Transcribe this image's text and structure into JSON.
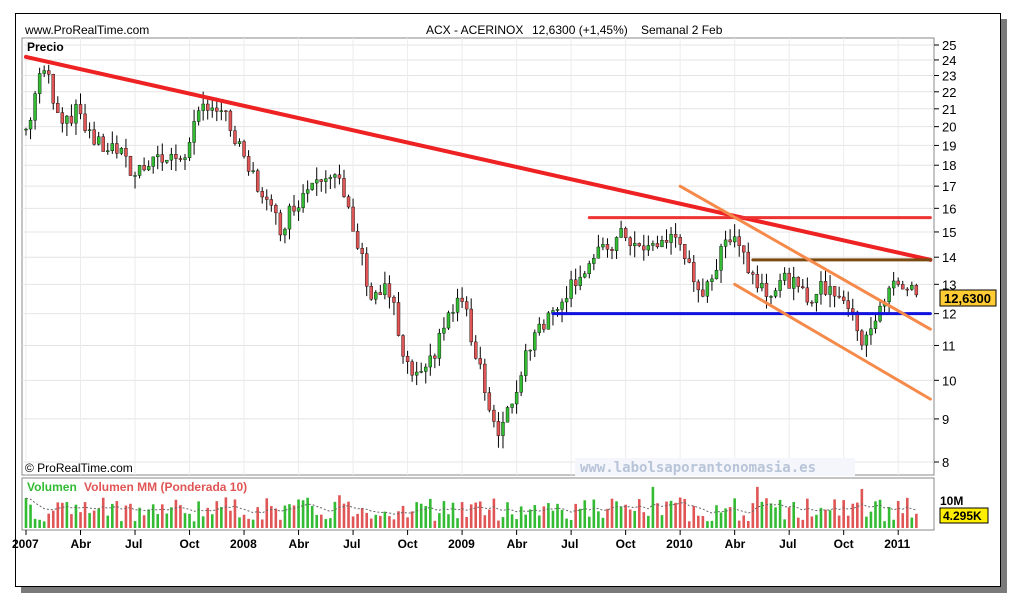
{
  "header": {
    "source": "www.ProRealTime.com",
    "instrument": "ACX - ACERINOX",
    "quote": "12,6300 (+1,45%)",
    "period": "Semanal 2 Feb"
  },
  "price_panel": {
    "label": "Precio",
    "copyright": "© ProRealTime.com",
    "watermark": "www.labolsaporantonomasia.es",
    "last_price_tag": "12,6300"
  },
  "volume_panel": {
    "label": "Volumen MM (Ponderada 10)",
    "scale_label": "10M",
    "last_volume_tag": "4.295K"
  },
  "colors": {
    "up": "#33bb33",
    "down": "#e05555",
    "main_trendline": "#ee2222",
    "resistance": "#ee3333",
    "support": "#1111dd",
    "channel": "#f58a4a",
    "brown_level": "#7a4a10",
    "price_tag_bg": "#ffcc33",
    "volume_tag_bg": "#ffee00"
  },
  "chart_data": [
    {
      "type": "candlestick",
      "title": "ACX - ACERINOX",
      "frequency": "weekly",
      "ylim": [
        8,
        25
      ],
      "y_ticks": [
        8,
        9,
        10,
        11,
        12,
        13,
        14,
        15,
        16,
        17,
        18,
        19,
        20,
        21,
        22,
        23,
        24,
        25
      ],
      "x_ticks": [
        "2007",
        "Abr",
        "Jul",
        "Oct",
        "2008",
        "Abr",
        "Jul",
        "Oct",
        "2009",
        "Abr",
        "Jul",
        "Oct",
        "2010",
        "Abr",
        "Jul",
        "Oct",
        "2011"
      ],
      "last_close": 12.63,
      "close_path": [
        {
          "date": "2007-01",
          "close": 19.5
        },
        {
          "date": "2007-02",
          "close": 23.7
        },
        {
          "date": "2007-03",
          "close": 20.5
        },
        {
          "date": "2007-04",
          "close": 20.8
        },
        {
          "date": "2007-05",
          "close": 19.0
        },
        {
          "date": "2007-06",
          "close": 18.8
        },
        {
          "date": "2007-07",
          "close": 17.5
        },
        {
          "date": "2007-08",
          "close": 18.5
        },
        {
          "date": "2007-09",
          "close": 18.2
        },
        {
          "date": "2007-10",
          "close": 18.8
        },
        {
          "date": "2007-11",
          "close": 21.5
        },
        {
          "date": "2007-12",
          "close": 20.5
        },
        {
          "date": "2008-01",
          "close": 18.2
        },
        {
          "date": "2008-02",
          "close": 16.8
        },
        {
          "date": "2008-03",
          "close": 15.2
        },
        {
          "date": "2008-04",
          "close": 16.3
        },
        {
          "date": "2008-05",
          "close": 17.6
        },
        {
          "date": "2008-06",
          "close": 17.8
        },
        {
          "date": "2008-07",
          "close": 15.2
        },
        {
          "date": "2008-08",
          "close": 12.6
        },
        {
          "date": "2008-09",
          "close": 12.8
        },
        {
          "date": "2008-10",
          "close": 10.3
        },
        {
          "date": "2008-11",
          "close": 10.0
        },
        {
          "date": "2008-12",
          "close": 11.5
        },
        {
          "date": "2009-01",
          "close": 12.5
        },
        {
          "date": "2009-02",
          "close": 10.5
        },
        {
          "date": "2009-03",
          "close": 8.5
        },
        {
          "date": "2009-04",
          "close": 9.6
        },
        {
          "date": "2009-05",
          "close": 11.5
        },
        {
          "date": "2009-06",
          "close": 12.0
        },
        {
          "date": "2009-07",
          "close": 13.0
        },
        {
          "date": "2009-08",
          "close": 13.7
        },
        {
          "date": "2009-09",
          "close": 14.3
        },
        {
          "date": "2009-10",
          "close": 14.9
        },
        {
          "date": "2009-11",
          "close": 14.2
        },
        {
          "date": "2009-12",
          "close": 14.6
        },
        {
          "date": "2010-01",
          "close": 14.8
        },
        {
          "date": "2010-02",
          "close": 12.5
        },
        {
          "date": "2010-03",
          "close": 13.6
        },
        {
          "date": "2010-04",
          "close": 15.2
        },
        {
          "date": "2010-05",
          "close": 13.3
        },
        {
          "date": "2010-06",
          "close": 12.8
        },
        {
          "date": "2010-07",
          "close": 13.2
        },
        {
          "date": "2010-08",
          "close": 12.5
        },
        {
          "date": "2010-09",
          "close": 12.9
        },
        {
          "date": "2010-10",
          "close": 12.6
        },
        {
          "date": "2010-11",
          "close": 11.2
        },
        {
          "date": "2010-12",
          "close": 12.0
        },
        {
          "date": "2011-01",
          "close": 13.2
        },
        {
          "date": "2011-02",
          "close": 12.63
        }
      ]
    },
    {
      "type": "bar",
      "title": "Volumen MM (Ponderada 10)",
      "ylim": [
        0,
        10000000
      ],
      "last_value": 4295000,
      "note": "weekly volume bars, green = up week, red = down week, with 10-period weighted moving average"
    }
  ],
  "annotations": {
    "main_trendline": {
      "from": {
        "date": "2007-01",
        "price": 24.2
      },
      "to": {
        "date": "2011-02",
        "price": 13.9
      }
    },
    "resistance": {
      "from": {
        "date": "2009-08",
        "price": 15.6
      },
      "to": {
        "date": "2011-02",
        "price": 15.6
      }
    },
    "support": {
      "from": {
        "date": "2009-06",
        "price": 12.0
      },
      "to": {
        "date": "2011-02",
        "price": 12.0
      }
    },
    "brown_level": {
      "from": {
        "date": "2010-05",
        "price": 13.9
      },
      "to": {
        "date": "2011-02",
        "price": 13.9
      }
    },
    "channel_upper": {
      "from": {
        "date": "2010-01",
        "price": 17.0
      },
      "to": {
        "date": "2011-02",
        "price": 11.5
      }
    },
    "channel_lower": {
      "from": {
        "date": "2010-04",
        "price": 13.0
      },
      "to": {
        "date": "2011-02",
        "price": 9.5
      }
    }
  }
}
